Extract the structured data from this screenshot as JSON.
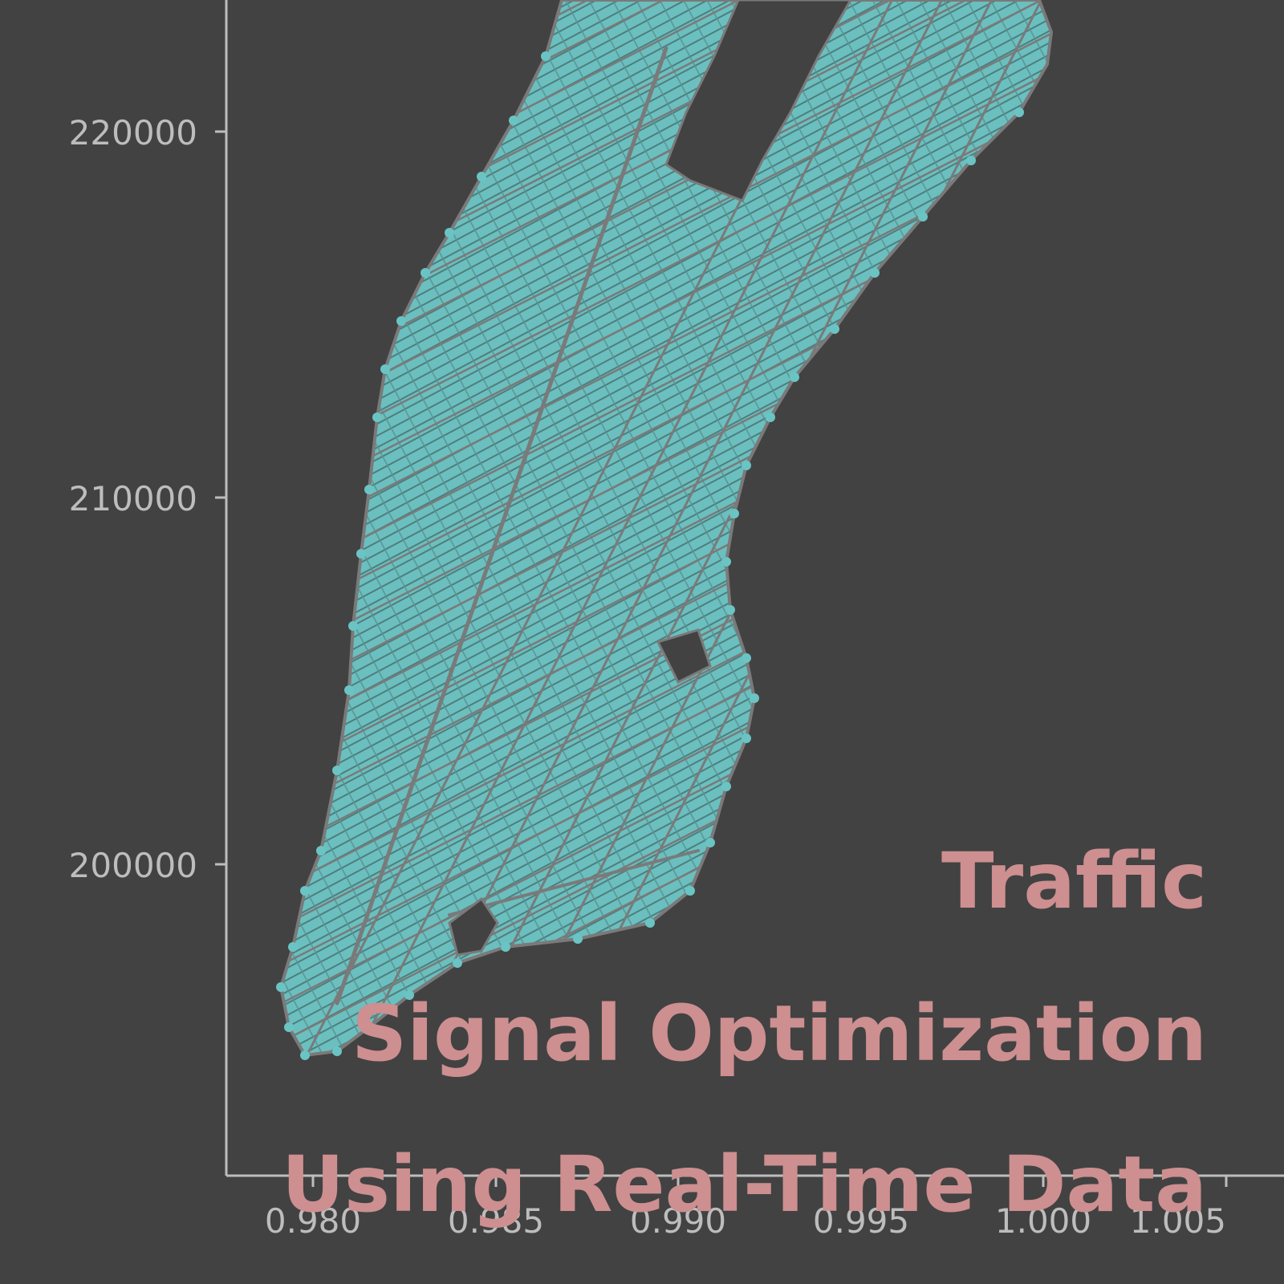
{
  "map": {
    "colors": {
      "background": "#424242",
      "axis": "#bdbdbd",
      "land": "#6bbfbf",
      "roads": "#7a7a7a",
      "nodes": "#6bc4c4",
      "title": "#cd8f90"
    },
    "x_axis": {
      "ticks": [
        "0.980",
        "0.985",
        "0.990",
        "0.995",
        "1.000",
        "1.005"
      ]
    },
    "y_axis": {
      "ticks": [
        "220000",
        "210000",
        "200000"
      ]
    }
  },
  "overlay_title": {
    "lines": [
      "Traffic",
      "Signal Optimization",
      "Using Real-Time Data"
    ]
  }
}
